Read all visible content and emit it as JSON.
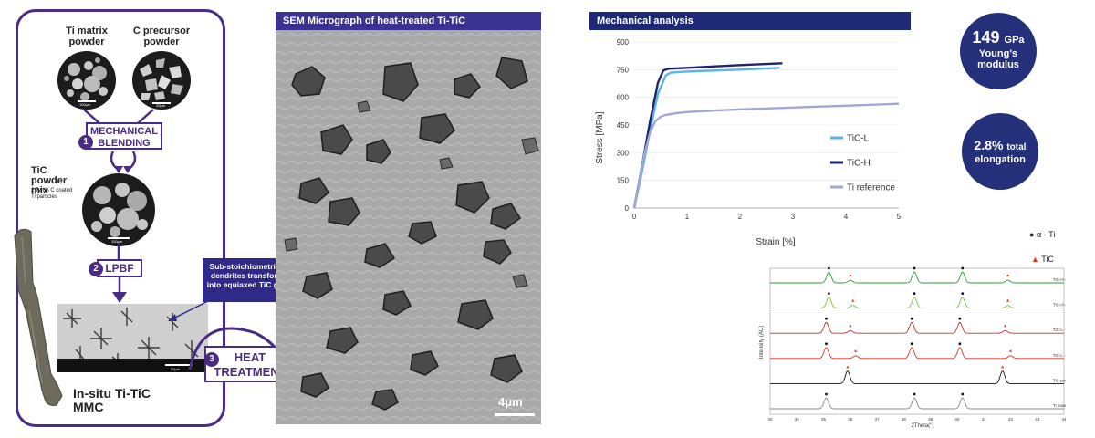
{
  "process": {
    "powder1_label": "Ti matrix powder",
    "powder2_label": "C precursor powder",
    "step1_number": "1",
    "step1_label": "MECHANICAL BLENDING",
    "mix_title": "TiC powder mix",
    "mix_sub": "2.7wt% C coated Ti particles",
    "step2_number": "2",
    "step2_label": "LPBF",
    "callout": "Sub-stoichiometric TiC dendrites transformed into equiaxed TiC grains",
    "step3_number": "3",
    "step3_label": "HEAT TREATMENT",
    "mmc_label": "In-situ Ti-TiC MMC",
    "scalebar_small_1": "100μm",
    "scalebar_small_2": "20μm",
    "scalebar_small_3": "100μm",
    "scalebar_small_4": "20μm"
  },
  "sem": {
    "title": "SEM Micrograph of heat-treated Ti-TiC",
    "scale_label": "4μm"
  },
  "mechanical": {
    "title": "Mechanical analysis",
    "badge1_value": "149",
    "badge1_unit": "GPa",
    "badge1_line2": "Young's",
    "badge1_line3": "modulus",
    "badge2_value": "2.8%",
    "badge2_unit": "total",
    "badge2_line2": "elongation"
  },
  "colors": {
    "purple": "#4b2c84",
    "navy": "#1e2a78",
    "tic_l": "#5ab4ea",
    "tic_h": "#1f2472",
    "ti_ref": "#a3a8d3",
    "xrd_red": "#c0392b",
    "xrd_green": "#2e9a3a",
    "xrd_lightgreen": "#7fbf3f"
  },
  "chart_data": [
    {
      "type": "line",
      "xlabel": "Strain [%]",
      "ylabel": "Stress [MPa]",
      "xlim": [
        0,
        5
      ],
      "ylim": [
        0,
        900
      ],
      "xticks": [
        "0",
        "1",
        "2",
        "3",
        "4",
        "5"
      ],
      "yticks": [
        "0",
        "150",
        "300",
        "450",
        "600",
        "750",
        "900"
      ],
      "legend_position": "right",
      "series": [
        {
          "name": "TiC-L",
          "color": "#5ab4ea",
          "x": [
            0,
            0.15,
            0.3,
            0.45,
            0.6,
            0.7,
            1.0,
            2.0,
            2.75
          ],
          "y": [
            0,
            200,
            420,
            620,
            720,
            735,
            740,
            750,
            760
          ]
        },
        {
          "name": "TiC-H",
          "color": "#1f2472",
          "x": [
            0,
            0.15,
            0.3,
            0.45,
            0.55,
            0.65,
            1.0,
            2.0,
            2.8
          ],
          "y": [
            0,
            230,
            470,
            680,
            745,
            755,
            760,
            775,
            785
          ]
        },
        {
          "name": "Ti reference",
          "color": "#a3a8d3",
          "x": [
            0,
            0.1,
            0.2,
            0.3,
            0.4,
            0.5,
            0.6,
            0.8,
            1.0,
            1.5,
            2.0,
            3.0,
            4.0,
            5.0
          ],
          "y": [
            0,
            150,
            300,
            410,
            470,
            495,
            505,
            515,
            520,
            528,
            535,
            545,
            555,
            565
          ]
        }
      ]
    },
    {
      "type": "line",
      "xlabel": "2Theta(°)",
      "ylabel": "Intensity (AU)",
      "xlim": [
        33,
        44
      ],
      "xticks": [
        "33",
        "34",
        "35",
        "36",
        "37",
        "38",
        "39",
        "40",
        "41",
        "42",
        "43",
        "44"
      ],
      "legend": [
        {
          "marker": "●",
          "label": "α - Ti"
        },
        {
          "marker": "▲",
          "label": "TiC"
        }
      ],
      "series": [
        {
          "name": "TiC-H - HT",
          "color": "#2e9a3a",
          "peaks": [
            35.2,
            38.4,
            40.2
          ],
          "tic_peaks": [
            36.0,
            41.9
          ]
        },
        {
          "name": "TiC-H - AB",
          "color": "#7fbf3f",
          "peaks": [
            35.2,
            38.4,
            40.2
          ],
          "tic_peaks": [
            36.1,
            41.9
          ]
        },
        {
          "name": "TiC-L - HT",
          "color": "#b23a2a",
          "peaks": [
            35.1,
            38.3,
            40.1
          ],
          "tic_peaks": [
            36.0,
            41.8
          ]
        },
        {
          "name": "TiC-L - AB",
          "color": "#d63a2a",
          "peaks": [
            35.1,
            38.3,
            40.1
          ],
          "tic_peaks": [
            36.2,
            42.0
          ]
        },
        {
          "name": "TiC powder",
          "color": "#111111",
          "peaks": [],
          "tic_peaks": [
            35.9,
            41.7
          ]
        },
        {
          "name": "Ti powder",
          "color": "#888888",
          "peaks": [
            35.1,
            38.4,
            40.2
          ],
          "tic_peaks": []
        }
      ]
    }
  ]
}
